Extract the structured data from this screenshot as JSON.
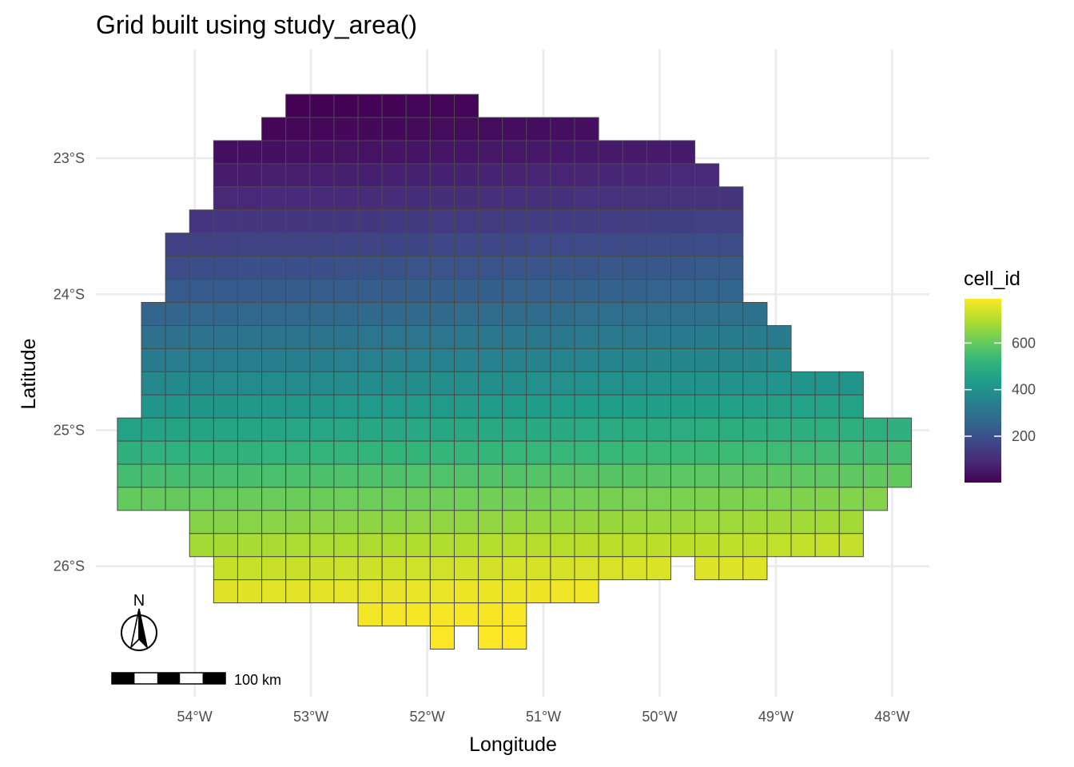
{
  "chart_data": {
    "type": "heatmap",
    "title": "Grid built using study_area()",
    "xlabel": "Longitude",
    "ylabel": "Latitude",
    "x_ticks": [
      {
        "value": -54,
        "label": "54°W"
      },
      {
        "value": -53,
        "label": "53°W"
      },
      {
        "value": -52,
        "label": "52°W"
      },
      {
        "value": -51,
        "label": "51°W"
      },
      {
        "value": -50,
        "label": "50°W"
      },
      {
        "value": -49,
        "label": "49°W"
      },
      {
        "value": -48,
        "label": "48°W"
      }
    ],
    "y_ticks": [
      {
        "value": -23,
        "label": "23°S"
      },
      {
        "value": -24,
        "label": "24°S"
      },
      {
        "value": -25,
        "label": "25°S"
      },
      {
        "value": -26,
        "label": "26°S"
      }
    ],
    "xlim": [
      -54.85,
      -47.68
    ],
    "ylim": [
      -26.96,
      -22.2
    ],
    "grid": true,
    "legend": {
      "title": "cell_id",
      "position": "right",
      "min": 1,
      "max": 790,
      "ticks": [
        200,
        400,
        600
      ],
      "colormap": "viridis"
    },
    "grid_cells": {
      "top_latitude": -22.53,
      "cell_height_deg": 0.17,
      "cell_width_deg": 0.207,
      "x0_longitude": -54.665,
      "rows": [
        [
          7,
          14
        ],
        [
          6,
          19
        ],
        [
          4,
          23
        ],
        [
          4,
          24
        ],
        [
          4,
          25
        ],
        [
          3,
          25
        ],
        [
          2,
          25
        ],
        [
          2,
          25
        ],
        [
          2,
          25
        ],
        [
          1,
          26
        ],
        [
          1,
          27
        ],
        [
          1,
          27
        ],
        [
          1,
          30
        ],
        [
          1,
          30
        ],
        [
          0,
          32
        ],
        [
          0,
          32
        ],
        [
          0,
          32
        ],
        [
          0,
          31
        ],
        [
          3,
          30
        ],
        [
          3,
          30
        ],
        [
          4,
          22,
          24,
          26
        ],
        [
          4,
          19
        ],
        [
          10,
          16
        ],
        [
          13,
          13,
          15,
          16
        ]
      ]
    },
    "north_arrow": {
      "label": "N"
    },
    "scale_bar": {
      "label": "100 km"
    }
  }
}
